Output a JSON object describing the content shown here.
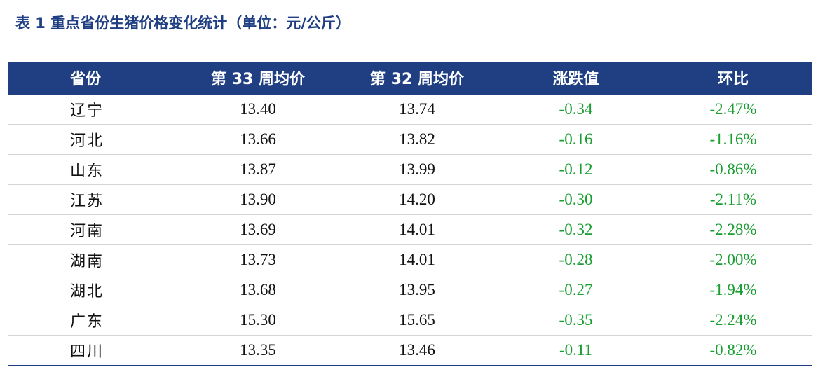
{
  "caption": "表 1  重点省份生猪价格变化统计（单位：元/公斤）",
  "table": {
    "headers": [
      "省份",
      "第 33 周均价",
      "第 32 周均价",
      "涨跌值",
      "环比"
    ],
    "rows": [
      [
        "辽宁",
        "13.40",
        "13.74",
        "-0.34",
        "-2.47%"
      ],
      [
        "河北",
        "13.66",
        "13.82",
        "-0.16",
        "-1.16%"
      ],
      [
        "山东",
        "13.87",
        "13.99",
        "-0.12",
        "-0.86%"
      ],
      [
        "江苏",
        "13.90",
        "14.20",
        "-0.30",
        "-2.11%"
      ],
      [
        "河南",
        "13.69",
        "14.01",
        "-0.32",
        "-2.28%"
      ],
      [
        "湖南",
        "13.73",
        "14.01",
        "-0.28",
        "-2.00%"
      ],
      [
        "湖北",
        "13.68",
        "13.95",
        "-0.27",
        "-1.94%"
      ],
      [
        "广东",
        "15.30",
        "15.65",
        "-0.35",
        "-2.24%"
      ],
      [
        "四川",
        "13.35",
        "13.46",
        "-0.11",
        "-0.82%"
      ]
    ]
  },
  "colors": {
    "header_bg": "#1f3f82",
    "caption_text": "#1f3f82",
    "negative_change": "#1a9e32"
  }
}
